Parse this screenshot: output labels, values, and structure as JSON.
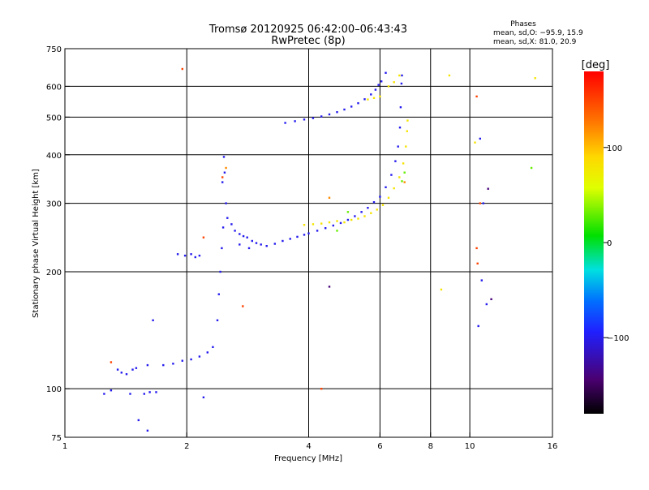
{
  "chart_data": {
    "type": "scatter",
    "title": "Tromsø 20120925 06:42:00–06:43:43",
    "subtitle": "RwPretec (8p)",
    "xlabel": "Frequency [MHz]",
    "ylabel": "Stationary phase Virtual Height [km]",
    "x_scale": "log",
    "y_scale": "log",
    "xlim": [
      1,
      16
    ],
    "ylim": [
      75,
      750
    ],
    "x_ticks": [
      1,
      2,
      4,
      6,
      8,
      10,
      16
    ],
    "x_tick_labels": [
      "1",
      "2",
      "4",
      "6",
      "8",
      "10",
      "16"
    ],
    "x_gridlines": [
      2,
      4,
      6,
      8,
      10
    ],
    "y_ticks": [
      75,
      100,
      200,
      300,
      400,
      500,
      600,
      750
    ],
    "y_tick_labels": [
      "75",
      "100",
      "200",
      "300",
      "400",
      "500",
      "600",
      "750"
    ],
    "y_gridlines": [
      100,
      200,
      300,
      400,
      500,
      600
    ],
    "grid": true,
    "phase_stats": {
      "heading": "Phases",
      "line_o": "mean, sd,O: −95.9, 15.9",
      "line_x": "mean, sd,X:  81.0, 20.9"
    },
    "colorbar": {
      "unit": "[deg]",
      "range": [
        -180,
        180
      ],
      "ticks": [
        100,
        0,
        -100
      ],
      "tick_labels": [
        "100",
        "0",
        "−100"
      ]
    },
    "series": [
      {
        "color_value": -100,
        "points": [
          [
            1.25,
            97
          ],
          [
            1.3,
            99
          ],
          [
            1.35,
            112
          ],
          [
            1.38,
            110
          ],
          [
            1.42,
            109
          ],
          [
            1.47,
            112
          ],
          [
            1.5,
            113
          ],
          [
            1.6,
            115
          ],
          [
            1.75,
            115
          ],
          [
            1.85,
            116
          ],
          [
            1.95,
            118
          ],
          [
            2.05,
            119
          ],
          [
            2.15,
            121
          ],
          [
            2.25,
            124
          ],
          [
            2.32,
            128
          ],
          [
            2.38,
            150
          ],
          [
            2.4,
            175
          ],
          [
            2.42,
            200
          ],
          [
            2.44,
            230
          ],
          [
            2.46,
            260
          ],
          [
            2.5,
            300
          ],
          [
            2.45,
            340
          ],
          [
            2.48,
            360
          ],
          [
            2.47,
            395
          ],
          [
            2.52,
            275
          ],
          [
            2.58,
            265
          ],
          [
            2.63,
            255
          ],
          [
            2.7,
            250
          ],
          [
            2.76,
            247
          ],
          [
            2.82,
            245
          ],
          [
            2.9,
            240
          ],
          [
            2.97,
            237
          ],
          [
            3.05,
            235
          ],
          [
            3.15,
            233
          ],
          [
            3.3,
            236
          ],
          [
            3.45,
            240
          ],
          [
            3.6,
            243
          ],
          [
            3.75,
            246
          ],
          [
            3.9,
            249
          ],
          [
            4.0,
            251
          ],
          [
            4.2,
            255
          ],
          [
            4.4,
            259
          ],
          [
            4.6,
            263
          ],
          [
            4.8,
            267
          ],
          [
            5.0,
            272
          ],
          [
            5.2,
            278
          ],
          [
            5.4,
            285
          ],
          [
            5.6,
            292
          ],
          [
            5.8,
            302
          ],
          [
            6.0,
            312
          ],
          [
            6.2,
            330
          ],
          [
            6.4,
            355
          ],
          [
            6.55,
            385
          ],
          [
            6.65,
            420
          ],
          [
            6.72,
            470
          ],
          [
            6.75,
            530
          ],
          [
            6.78,
            610
          ],
          [
            6.8,
            640
          ],
          [
            3.5,
            483
          ],
          [
            3.7,
            488
          ],
          [
            3.9,
            493
          ],
          [
            4.1,
            497
          ],
          [
            4.3,
            502
          ],
          [
            4.5,
            508
          ],
          [
            4.7,
            515
          ],
          [
            4.9,
            523
          ],
          [
            5.1,
            532
          ],
          [
            5.3,
            543
          ],
          [
            5.5,
            556
          ],
          [
            5.7,
            572
          ],
          [
            5.85,
            588
          ],
          [
            5.95,
            605
          ],
          [
            6.05,
            618
          ],
          [
            6.2,
            650
          ],
          [
            1.57,
            97
          ],
          [
            1.62,
            98
          ],
          [
            1.68,
            98
          ],
          [
            1.45,
            97
          ],
          [
            1.52,
            83
          ],
          [
            1.65,
            150
          ],
          [
            1.9,
            222
          ],
          [
            1.98,
            220
          ],
          [
            2.05,
            222
          ],
          [
            2.1,
            218
          ],
          [
            2.15,
            220
          ],
          [
            2.7,
            235
          ],
          [
            2.85,
            230
          ],
          [
            10.6,
            440
          ],
          [
            10.7,
            190
          ],
          [
            10.8,
            300
          ],
          [
            11.0,
            165
          ],
          [
            10.5,
            145
          ],
          [
            1.6,
            78
          ],
          [
            2.2,
            95
          ]
        ]
      },
      {
        "color_value": 80,
        "points": [
          [
            3.9,
            264
          ],
          [
            4.1,
            265
          ],
          [
            4.3,
            266
          ],
          [
            4.5,
            268
          ],
          [
            4.7,
            270
          ],
          [
            4.9,
            268
          ],
          [
            5.1,
            272
          ],
          [
            5.3,
            274
          ],
          [
            5.5,
            278
          ],
          [
            5.7,
            283
          ],
          [
            5.9,
            289
          ],
          [
            6.1,
            297
          ],
          [
            6.3,
            310
          ],
          [
            6.5,
            328
          ],
          [
            6.7,
            350
          ],
          [
            6.85,
            380
          ],
          [
            6.95,
            420
          ],
          [
            7.0,
            460
          ],
          [
            7.02,
            490
          ],
          [
            5.6,
            555
          ],
          [
            5.8,
            560
          ],
          [
            6.0,
            565
          ],
          [
            6.3,
            600
          ],
          [
            6.5,
            615
          ],
          [
            6.7,
            640
          ],
          [
            8.9,
            640
          ],
          [
            8.5,
            180
          ],
          [
            10.3,
            430
          ],
          [
            14.5,
            630
          ]
        ]
      },
      {
        "color_value": 30,
        "points": [
          [
            5.0,
            285
          ],
          [
            4.7,
            255
          ],
          [
            6.9,
            360
          ],
          [
            6.8,
            342
          ],
          [
            14.2,
            370
          ]
        ]
      },
      {
        "color_value": 120,
        "points": [
          [
            4.5,
            310
          ],
          [
            6.9,
            340
          ],
          [
            2.5,
            370
          ]
        ]
      },
      {
        "color_value": 150,
        "points": [
          [
            1.3,
            117
          ],
          [
            2.2,
            245
          ],
          [
            2.75,
            163
          ],
          [
            4.3,
            100
          ],
          [
            10.4,
            230
          ],
          [
            10.45,
            210
          ],
          [
            10.6,
            300
          ],
          [
            10.4,
            565
          ],
          [
            1.95,
            665
          ],
          [
            2.45,
            350
          ]
        ]
      },
      {
        "color_value": -140,
        "points": [
          [
            4.5,
            183
          ],
          [
            11.1,
            327
          ],
          [
            11.3,
            170
          ]
        ]
      }
    ]
  }
}
